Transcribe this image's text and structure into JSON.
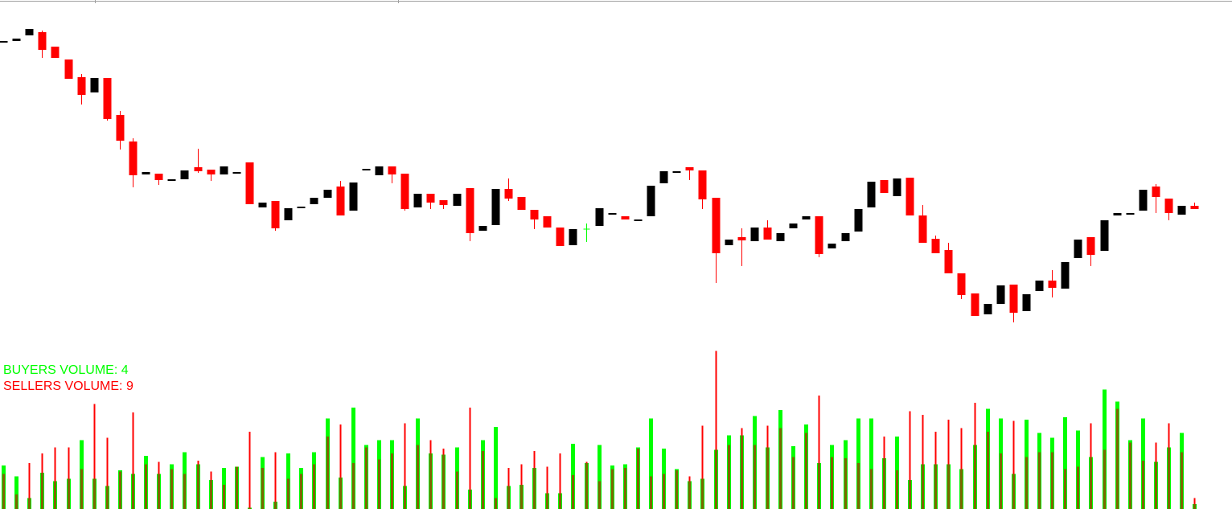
{
  "chart_data": [
    {
      "type": "candlestick",
      "open": [
        448,
        449,
        456,
        460,
        442,
        426,
        404,
        385,
        403,
        357,
        324,
        283,
        284,
        276,
        277,
        292,
        289,
        283,
        285,
        298,
        242,
        250,
        226,
        241,
        246,
        254,
        268,
        238,
        289,
        282,
        293,
        284,
        242,
        259,
        251,
        244,
        266,
        213,
        220,
        265,
        255,
        239,
        231,
        217,
        195,
        215,
        219,
        234,
        231,
        226,
        231,
        272,
        286,
        292,
        288,
        254,
        195,
        205,
        200,
        217,
        200,
        216,
        227,
        231,
        191,
        200,
        212,
        242,
        276,
        256,
        279,
        232,
        203,
        189,
        160,
        135,
        109,
        122,
        146,
        113,
        138,
        151,
        141,
        179,
        205,
        188,
        232,
        234,
        238,
        268,
        253,
        233,
        244
      ],
      "high": [
        449,
        452,
        464,
        462,
        442,
        426,
        408,
        403,
        403,
        362,
        328,
        286,
        284,
        277,
        288,
        315,
        289,
        293,
        286,
        298,
        248,
        250,
        241,
        243,
        254,
        264,
        275,
        273,
        290,
        293,
        293,
        284,
        259,
        259,
        251,
        259,
        266,
        219,
        265,
        278,
        255,
        239,
        231,
        217,
        215,
        222,
        241,
        235,
        231,
        227,
        269,
        287,
        287,
        292,
        288,
        254,
        202,
        216,
        217,
        226,
        210,
        222,
        231,
        231,
        197,
        210,
        240,
        274,
        276,
        278,
        279,
        245,
        207,
        198,
        160,
        135,
        122,
        145,
        146,
        134,
        151,
        164,
        174,
        202,
        205,
        226,
        235,
        235,
        264,
        271,
        253,
        244,
        248
      ],
      "low": [
        448,
        449,
        456,
        428,
        428,
        402,
        370,
        385,
        350,
        314,
        267,
        283,
        270,
        276,
        277,
        285,
        275,
        283,
        285,
        246,
        242,
        213,
        226,
        241,
        246,
        254,
        232,
        238,
        289,
        282,
        272,
        238,
        242,
        240,
        240,
        244,
        200,
        213,
        220,
        250,
        239,
        215,
        217,
        194,
        195,
        199,
        219,
        234,
        227,
        226,
        231,
        272,
        286,
        276,
        240,
        148,
        195,
        169,
        200,
        202,
        200,
        216,
        227,
        180,
        191,
        200,
        212,
        242,
        260,
        256,
        232,
        198,
        185,
        160,
        128,
        107,
        109,
        122,
        99,
        113,
        138,
        130,
        141,
        179,
        169,
        188,
        232,
        234,
        238,
        235,
        226,
        233,
        240
      ],
      "close": [
        449,
        452,
        464,
        438,
        428,
        402,
        382,
        403,
        352,
        325,
        282,
        286,
        276,
        277,
        288,
        287,
        283,
        293,
        286,
        246,
        248,
        216,
        241,
        243,
        254,
        264,
        232,
        273,
        290,
        293,
        283,
        240,
        259,
        248,
        245,
        259,
        210,
        219,
        265,
        253,
        239,
        227,
        217,
        194,
        215,
        215,
        241,
        235,
        227,
        227,
        269,
        287,
        287,
        288,
        252,
        185,
        202,
        201,
        217,
        202,
        210,
        222,
        231,
        184,
        197,
        210,
        240,
        274,
        260,
        278,
        232,
        198,
        185,
        160,
        133,
        107,
        122,
        145,
        111,
        134,
        151,
        142,
        174,
        202,
        183,
        226,
        235,
        235,
        264,
        255,
        235,
        244,
        240
      ],
      "up_color": "#000000",
      "down_color": "#ff0000",
      "flat_color": "#00ff00",
      "ylim": [
        0,
        500
      ]
    },
    {
      "type": "bar",
      "series": [
        {
          "name": "BUYERS VOLUME: 4",
          "color": "#00ff00",
          "values": [
            36,
            27,
            9,
            30,
            23,
            25,
            57,
            25,
            19,
            32,
            29,
            44,
            29,
            37,
            47,
            37,
            24,
            34,
            35,
            1,
            43,
            6,
            46,
            34,
            47,
            75,
            26,
            84,
            53,
            57,
            57,
            19,
            75,
            46,
            45,
            51,
            16,
            57,
            68,
            19,
            20,
            34,
            13,
            13,
            54,
            38,
            53,
            36,
            37,
            51,
            75,
            50,
            33,
            23,
            25,
            49,
            61,
            61,
            77,
            51,
            82,
            52,
            70,
            38,
            53,
            57,
            75,
            75,
            42,
            60,
            24,
            37,
            37,
            37,
            33,
            53,
            83,
            75,
            29,
            74,
            63,
            59,
            76,
            65,
            43,
            99,
            89,
            57,
            75,
            39,
            51,
            63,
            4
          ]
        },
        {
          "name": "SELLERS VOLUME: 9",
          "color": "#ff0000",
          "values": [
            29,
            12,
            38,
            46,
            51,
            51,
            33,
            87,
            59,
            31,
            80,
            37,
            39,
            33,
            29,
            40,
            31,
            20,
            35,
            64,
            34,
            47,
            25,
            29,
            37,
            60,
            70,
            38,
            51,
            41,
            46,
            71,
            53,
            57,
            50,
            31,
            84,
            48,
            9,
            34,
            37,
            48,
            35,
            46,
            28,
            39,
            23,
            33,
            34,
            50,
            27,
            29,
            32,
            27,
            69,
            131,
            53,
            67,
            53,
            69,
            67,
            43,
            63,
            94,
            43,
            42,
            38,
            33,
            60,
            32,
            81,
            78,
            64,
            74,
            67,
            88,
            64,
            46,
            73,
            43,
            47,
            47,
            33,
            35,
            71,
            49,
            83,
            55,
            40,
            55,
            71,
            47,
            9
          ]
        }
      ],
      "overlap_color": "#7f6400",
      "ylim": [
        0,
        422
      ]
    }
  ]
}
